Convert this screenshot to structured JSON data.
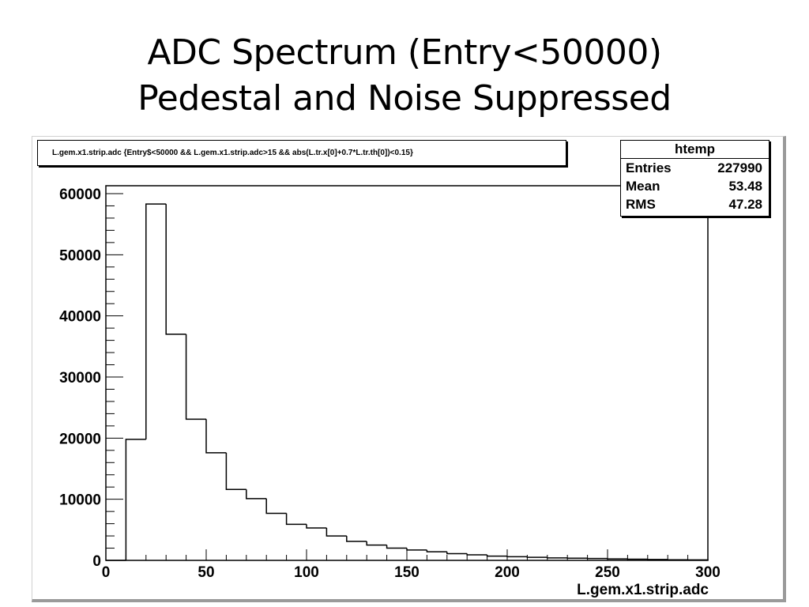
{
  "slide": {
    "title_line1": "ADC Spectrum (Entry<50000)",
    "title_line2": "Pedestal and Noise Suppressed"
  },
  "cut_label": "L.gem.x1.strip.adc {Entry$<50000 && L.gem.x1.strip.adc>15 && abs(L.tr.x[0]+0.7*L.tr.th[0])<0.15}",
  "stats": {
    "name": "htemp",
    "rows": [
      {
        "label": "Entries",
        "value": "227990"
      },
      {
        "label": "Mean",
        "value": "53.48"
      },
      {
        "label": "RMS",
        "value": "47.28"
      }
    ]
  },
  "colors": {
    "line": "#000000",
    "frame_shadow": "#9a9a9a"
  },
  "chart_data": {
    "type": "histogram",
    "title": "",
    "xlabel": "L.gem.x1.strip.adc",
    "ylabel": "",
    "xlim": [
      0,
      300
    ],
    "ylim": [
      0,
      60000
    ],
    "xticks": [
      0,
      50,
      100,
      150,
      200,
      250,
      300
    ],
    "yticks": [
      0,
      10000,
      20000,
      30000,
      40000,
      50000,
      60000
    ],
    "bin_edges": [
      0,
      10,
      20,
      30,
      40,
      50,
      60,
      70,
      80,
      90,
      100,
      110,
      120,
      130,
      140,
      150,
      160,
      170,
      180,
      190,
      200,
      210,
      220,
      230,
      240,
      250,
      260,
      270,
      280,
      290,
      300
    ],
    "counts": [
      0,
      19800,
      58300,
      37000,
      23100,
      17600,
      11600,
      10100,
      7700,
      5900,
      5300,
      4000,
      3100,
      2500,
      2000,
      1700,
      1400,
      1100,
      900,
      700,
      600,
      500,
      400,
      350,
      300,
      250,
      200,
      150,
      100,
      80
    ],
    "grid": false,
    "legend": "none"
  }
}
